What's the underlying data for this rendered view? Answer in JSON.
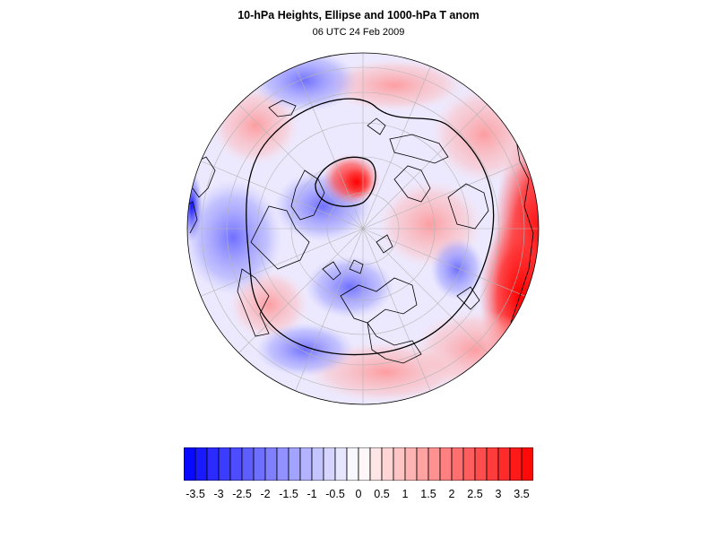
{
  "title": "10-hPa Heights, Ellipse and 1000-hPa T anom",
  "subtitle": "06 UTC 24 Feb 2009",
  "colorbar": {
    "levels": [
      -3.75,
      -3.5,
      -3.25,
      -3,
      -2.75,
      -2.5,
      -2.25,
      -2,
      -1.75,
      -1.5,
      -1.25,
      -1,
      -0.75,
      -0.5,
      -0.25,
      0,
      0.25,
      0.5,
      0.75,
      1,
      1.25,
      1.5,
      1.75,
      2,
      2.25,
      2.5,
      2.75,
      3,
      3.25,
      3.5,
      3.75
    ],
    "tick_labels": [
      "-3.5",
      "-3",
      "-2.5",
      "-2",
      "-1.5",
      "-1",
      "-0.5",
      "0",
      "0.5",
      "1",
      "1.5",
      "2",
      "2.5",
      "3",
      "3.5"
    ],
    "tick_values": [
      -3.5,
      -3,
      -2.5,
      -2,
      -1.5,
      -1,
      -0.5,
      0,
      0.5,
      1,
      1.5,
      2,
      2.5,
      3,
      3.5
    ],
    "colors": {
      "min": "#0000ff",
      "zero": "#ffffff",
      "max": "#ff0000"
    }
  },
  "map": {
    "projection": "orthographic polar",
    "contours": "10-hPa heights",
    "graticule": true,
    "coastlines": true
  }
}
